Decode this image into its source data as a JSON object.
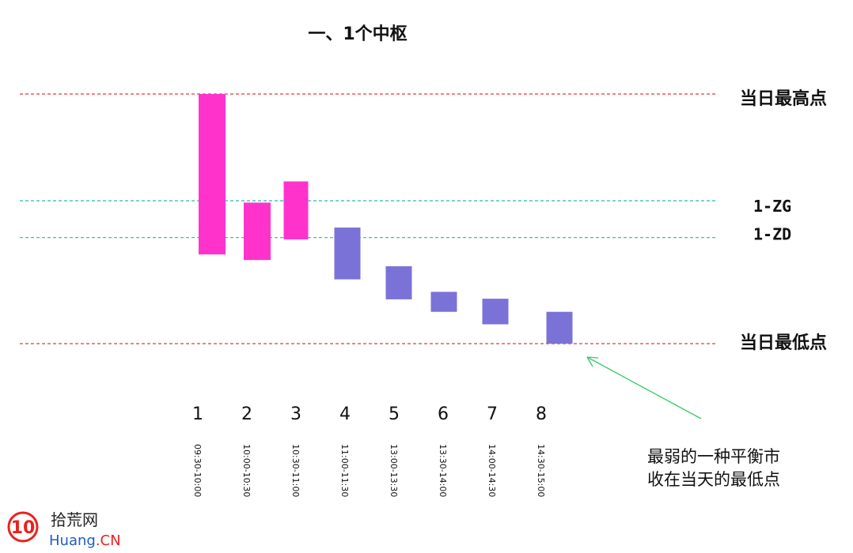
{
  "title": "一、1个中枢",
  "colors": {
    "up_bar": "#ff33cc",
    "down_bar": "#7b72d8",
    "extreme_line": "#e23a3a",
    "zone_line": "#2bb5a8",
    "arrow": "#33cc66",
    "logo_red": "#e8231f",
    "logo_blue": "#1f5fbf"
  },
  "levels": {
    "day_high": {
      "label": "当日最高点",
      "value": 100
    },
    "zg": {
      "label": "1-ZG",
      "value": 57.25
    },
    "zd": {
      "label": "1-ZD",
      "value": 42.5
    },
    "day_low": {
      "label": "当日最低点",
      "value": 0
    }
  },
  "bars": [
    {
      "num": "1",
      "time": "09:30-10:00",
      "low": 35.75,
      "high": 100,
      "color": "up"
    },
    {
      "num": "2",
      "time": "10:00-10:30",
      "low": 33.5,
      "high": 56.5,
      "color": "up"
    },
    {
      "num": "3",
      "time": "10:30-11:00",
      "low": 41.75,
      "high": 65,
      "color": "up"
    },
    {
      "num": "4",
      "time": "11:00-11:30",
      "low": 25.75,
      "high": 46.5,
      "color": "down"
    },
    {
      "num": "5",
      "time": "13:00-13:30",
      "low": 17.75,
      "high": 31,
      "color": "down"
    },
    {
      "num": "6",
      "time": "13:30-14:00",
      "low": 12.75,
      "high": 20.75,
      "color": "down"
    },
    {
      "num": "7",
      "time": "14:00-14:30",
      "low": 7.75,
      "high": 18,
      "color": "down"
    },
    {
      "num": "8",
      "time": "14:30-15:00",
      "low": 0,
      "high": 12.75,
      "color": "down"
    }
  ],
  "annotation": {
    "line1": "最弱的一种平衡市",
    "line2": "收在当天的最低点"
  },
  "watermark": {
    "badge": "10",
    "name": "拾荒网",
    "url_prefix": "Huang",
    "url_suffix": ".CN"
  }
}
